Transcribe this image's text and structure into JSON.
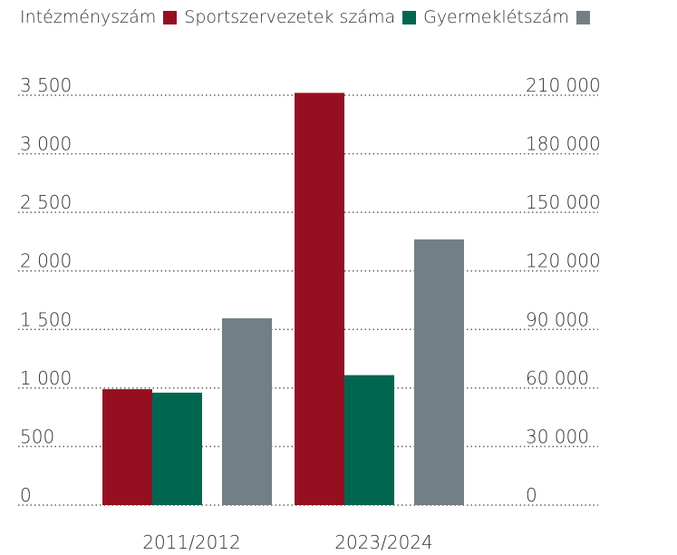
{
  "chart_data": {
    "type": "bar",
    "categories": [
      "2011/2012",
      "2023/2024"
    ],
    "series": [
      {
        "name": "Intézményszám",
        "color": "#960f20",
        "values": [
          990,
          3520
        ]
      },
      {
        "name": "Sportszervezetek száma",
        "color": "#006650",
        "values": [
          960,
          1110
        ]
      },
      {
        "name": "Gyermeklétszám",
        "color": "#727f85",
        "axis": "y2",
        "values": [
          95700,
          136100
        ]
      }
    ],
    "ylim": [
      0,
      3500
    ],
    "yticks": [
      0,
      500,
      {
        "value": 1000,
        "label": "1 000"
      },
      {
        "value": 1500,
        "label": "1 500"
      },
      {
        "value": 2000,
        "label": "2 000"
      },
      {
        "value": 2500,
        "label": "2 500"
      },
      {
        "value": 3000,
        "label": "3 000"
      },
      {
        "value": 3500,
        "label": "3 500"
      }
    ],
    "y2lim": [
      0,
      210000
    ],
    "y2ticks": [
      0,
      {
        "value": 30000,
        "label": "30 000"
      },
      {
        "value": 60000,
        "label": "60 000"
      },
      {
        "value": 90000,
        "label": "90 000"
      },
      {
        "value": 120000,
        "label": "120 000"
      },
      {
        "value": 150000,
        "label": "150 000"
      },
      {
        "value": 180000,
        "label": "180 000"
      },
      {
        "value": 210000,
        "label": "210 000"
      }
    ],
    "grid": true
  }
}
